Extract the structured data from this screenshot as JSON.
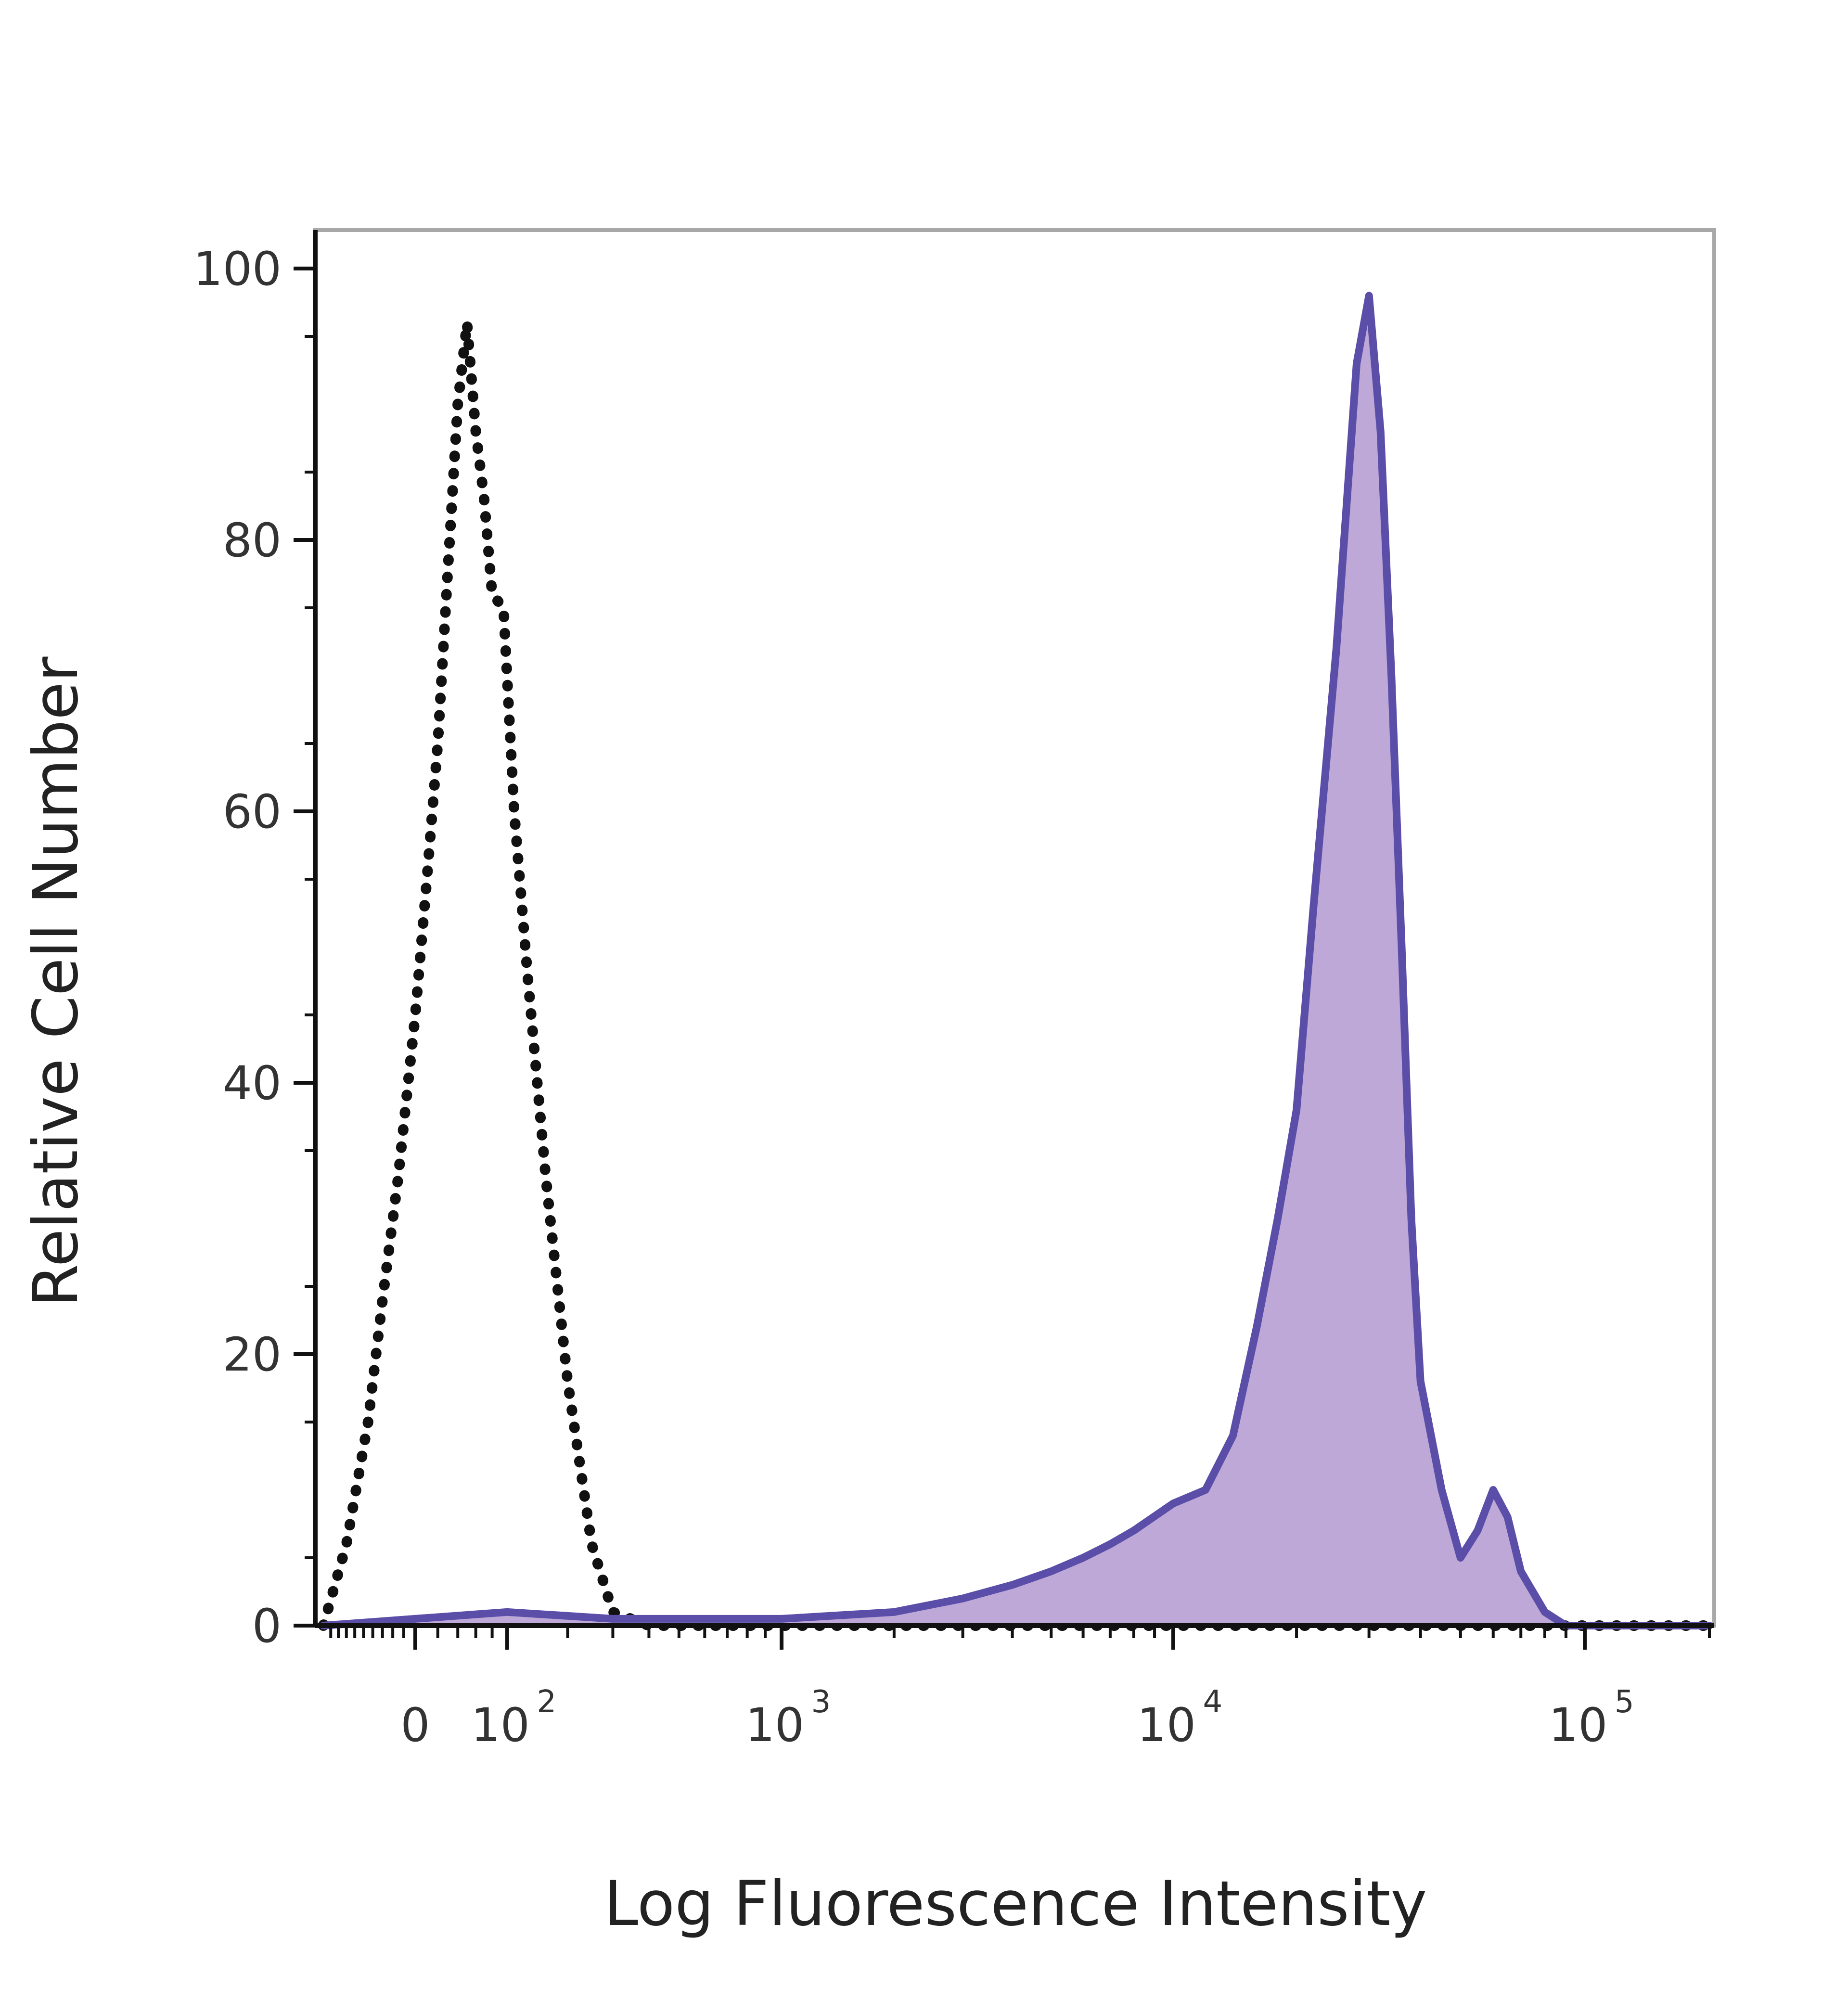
{
  "chart_data": {
    "type": "area",
    "title": "",
    "xlabel": "Log Fluorescence Intensity",
    "ylabel": "Relative Cell Number",
    "xscale": "biexponential",
    "ylim": [
      0,
      100
    ],
    "yticks": [
      {
        "value": 0,
        "label": "0"
      },
      {
        "value": 20,
        "label": "20"
      },
      {
        "value": 40,
        "label": "40"
      },
      {
        "value": 60,
        "label": "60"
      },
      {
        "value": 80,
        "label": "80"
      },
      {
        "value": 100,
        "label": "100"
      }
    ],
    "xticks": [
      {
        "value": 0,
        "label": "0"
      },
      {
        "value": 100,
        "label": "10",
        "exp": "2"
      },
      {
        "value": 1000,
        "label": "10",
        "exp": "3"
      },
      {
        "value": 10000,
        "label": "10",
        "exp": "4"
      },
      {
        "value": 100000,
        "label": "10",
        "exp": "5"
      }
    ],
    "grid": false,
    "legend": "none",
    "series": [
      {
        "style": "dotted",
        "color": "#111111",
        "fill": "none",
        "x": [
          -100,
          -70,
          -45,
          -30,
          -15,
          0,
          10,
          20,
          30,
          40,
          50,
          60,
          70,
          80,
          95,
          110,
          130,
          160,
          200,
          250,
          300,
          400,
          600,
          1000,
          2000,
          5000,
          10000,
          20000,
          40000,
          70000,
          100000,
          200000
        ],
        "y": [
          0,
          6,
          15,
          24,
          33,
          45,
          55,
          65,
          78,
          90,
          96,
          88,
          83,
          76,
          75,
          60,
          48,
          33,
          18,
          6,
          1,
          0,
          0,
          0,
          0,
          0,
          0,
          0,
          0,
          0,
          0,
          0
        ]
      },
      {
        "style": "solid",
        "color": "#5a4ea8",
        "fill": "#bea8d8",
        "x": [
          -100,
          0,
          100,
          300,
          1000,
          2000,
          3000,
          4000,
          5000,
          6000,
          7000,
          8000,
          10000,
          12000,
          14000,
          16000,
          18000,
          20000,
          22000,
          25000,
          28000,
          30000,
          32000,
          34000,
          36000,
          38000,
          40000,
          45000,
          50000,
          55000,
          60000,
          65000,
          70000,
          80000,
          90000,
          100000,
          200000
        ],
        "y": [
          0,
          0.5,
          1,
          0.5,
          0.5,
          1,
          2,
          3,
          4,
          5,
          6,
          7,
          9,
          10,
          14,
          22,
          30,
          38,
          53,
          72,
          93,
          98,
          88,
          70,
          50,
          30,
          18,
          10,
          5,
          7,
          10,
          8,
          4,
          1,
          0,
          0,
          0
        ]
      }
    ]
  }
}
